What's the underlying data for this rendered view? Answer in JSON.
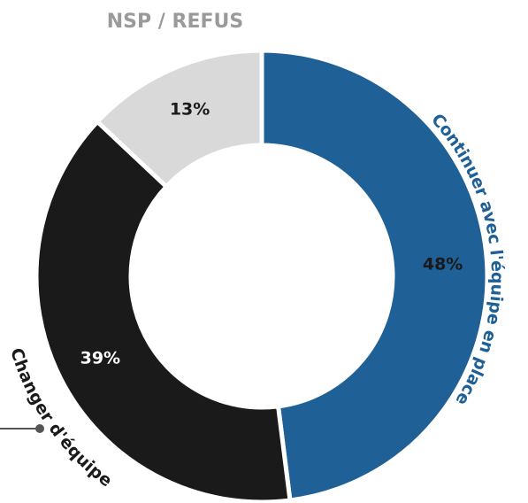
{
  "chart_data": {
    "type": "donut",
    "categories": [
      "Continuer avec l'équipe en place",
      "Changer d'équipe",
      "NSP / REFUS"
    ],
    "values": [
      48,
      39,
      13
    ],
    "value_labels": [
      "48%",
      "39%",
      "13%"
    ],
    "colors": [
      "#1f6096",
      "#1a1a1a",
      "#d9d9d9"
    ]
  }
}
